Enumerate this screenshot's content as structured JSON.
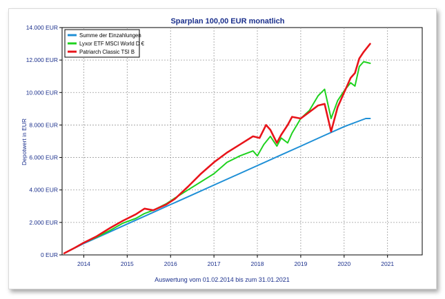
{
  "chart_data": {
    "type": "line",
    "title": "Sparplan 100,00 EUR monatlich",
    "ylabel": "Depotwert in EUR",
    "footer": "Auswertung vom 01.02.2014 bis zum 31.01.2021",
    "x_unit": "year",
    "xlim": [
      2013.5,
      2021.8
    ],
    "ylim": [
      0,
      14000
    ],
    "grid": true,
    "legend_position": "top-left",
    "y_ticks": [
      0,
      2000,
      4000,
      6000,
      8000,
      10000,
      12000,
      14000
    ],
    "y_tick_labels": [
      "0 EUR",
      "2.000 EUR",
      "4.000 EUR",
      "6.000 EUR",
      "8.000 EUR",
      "10.000 EUR",
      "12.000 EUR",
      "14.000 EUR"
    ],
    "x_ticks": [
      2014,
      2015,
      2016,
      2017,
      2018,
      2019,
      2020,
      2021
    ],
    "x_tick_labels": [
      "2014",
      "2015",
      "2016",
      "2017",
      "2018",
      "2019",
      "2020",
      "2021"
    ],
    "series": [
      {
        "name": "Summe der Einzahlungen",
        "color": "#1e8fd6",
        "x": [
          2013.55,
          2014.0,
          2014.5,
          2015.0,
          2015.5,
          2016.0,
          2016.5,
          2017.0,
          2017.5,
          2018.0,
          2018.5,
          2019.0,
          2019.5,
          2020.0,
          2020.5,
          2020.6
        ],
        "values": [
          100,
          700,
          1300,
          1900,
          2500,
          3100,
          3700,
          4300,
          4900,
          5500,
          6100,
          6700,
          7300,
          7900,
          8400,
          8400
        ]
      },
      {
        "name": "Lyxor ETF MSCI World D €",
        "color": "#1fd21f",
        "x": [
          2013.55,
          2013.8,
          2014.0,
          2014.3,
          2014.6,
          2014.9,
          2015.2,
          2015.4,
          2015.6,
          2015.9,
          2016.1,
          2016.4,
          2016.7,
          2017.0,
          2017.3,
          2017.6,
          2017.9,
          2018.0,
          2018.15,
          2018.3,
          2018.45,
          2018.55,
          2018.7,
          2018.8,
          2019.0,
          2019.2,
          2019.4,
          2019.55,
          2019.7,
          2019.85,
          2020.0,
          2020.15,
          2020.25,
          2020.35,
          2020.45,
          2020.6
        ],
        "values": [
          100,
          450,
          750,
          1100,
          1500,
          1950,
          2250,
          2550,
          2750,
          3150,
          3500,
          4000,
          4500,
          5000,
          5700,
          6100,
          6400,
          6100,
          6800,
          7300,
          6700,
          7200,
          6900,
          7500,
          8400,
          8900,
          9800,
          10200,
          8400,
          9500,
          10100,
          10600,
          10400,
          11600,
          11900,
          11800
        ]
      },
      {
        "name": "Patriarch Classic TSI B",
        "color": "#e8141a",
        "x": [
          2013.55,
          2013.8,
          2014.0,
          2014.3,
          2014.6,
          2014.9,
          2015.2,
          2015.4,
          2015.6,
          2015.9,
          2016.1,
          2016.4,
          2016.7,
          2017.0,
          2017.3,
          2017.6,
          2017.9,
          2018.05,
          2018.2,
          2018.3,
          2018.45,
          2018.55,
          2018.7,
          2018.8,
          2019.0,
          2019.2,
          2019.4,
          2019.55,
          2019.7,
          2019.85,
          2020.0,
          2020.15,
          2020.25,
          2020.35,
          2020.45,
          2020.6
        ],
        "values": [
          100,
          450,
          750,
          1150,
          1650,
          2100,
          2500,
          2850,
          2750,
          3100,
          3450,
          4200,
          5000,
          5700,
          6300,
          6800,
          7300,
          7200,
          8000,
          7700,
          6900,
          7400,
          8000,
          8500,
          8400,
          8800,
          9200,
          9300,
          7600,
          9100,
          10000,
          10900,
          11200,
          12100,
          12500,
          13000
        ]
      }
    ]
  }
}
